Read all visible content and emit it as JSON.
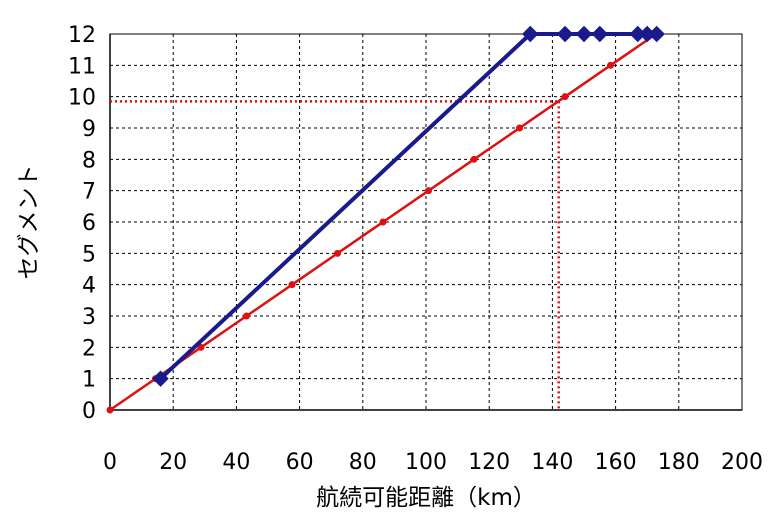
{
  "chart_data": {
    "type": "line",
    "xlabel": "航続可能距離（km）",
    "ylabel": "セグメント",
    "xlim": [
      0,
      200
    ],
    "ylim": [
      0,
      12
    ],
    "x_ticks": [
      "0",
      "20",
      "40",
      "60",
      "80",
      "100",
      "120",
      "140",
      "160",
      "180",
      "200"
    ],
    "y_ticks": [
      "0",
      "1",
      "2",
      "3",
      "4",
      "5",
      "6",
      "7",
      "8",
      "9",
      "10",
      "11",
      "12"
    ],
    "grid": true,
    "series": [
      {
        "color": "#1a1a8c",
        "marker": "diamond",
        "points": [
          [
            16,
            1
          ],
          [
            133,
            12
          ],
          [
            144,
            12
          ],
          [
            150,
            12
          ],
          [
            155,
            12
          ],
          [
            167,
            12
          ],
          [
            170,
            12
          ],
          [
            173,
            12
          ]
        ]
      },
      {
        "color": "#dd1111",
        "marker": "circle",
        "points": [
          [
            0,
            0
          ],
          [
            14.4,
            1
          ],
          [
            28.8,
            2
          ],
          [
            43.2,
            3
          ],
          [
            57.6,
            4
          ],
          [
            72,
            5
          ],
          [
            86.4,
            6
          ],
          [
            100.8,
            7
          ],
          [
            115.2,
            8
          ],
          [
            129.6,
            9
          ],
          [
            144,
            10
          ],
          [
            158.4,
            11
          ],
          [
            172.8,
            12
          ]
        ]
      }
    ],
    "reference_lines": [
      {
        "color": "#dd1111",
        "style": "dotted",
        "x": 142,
        "y": 9.85
      }
    ]
  }
}
